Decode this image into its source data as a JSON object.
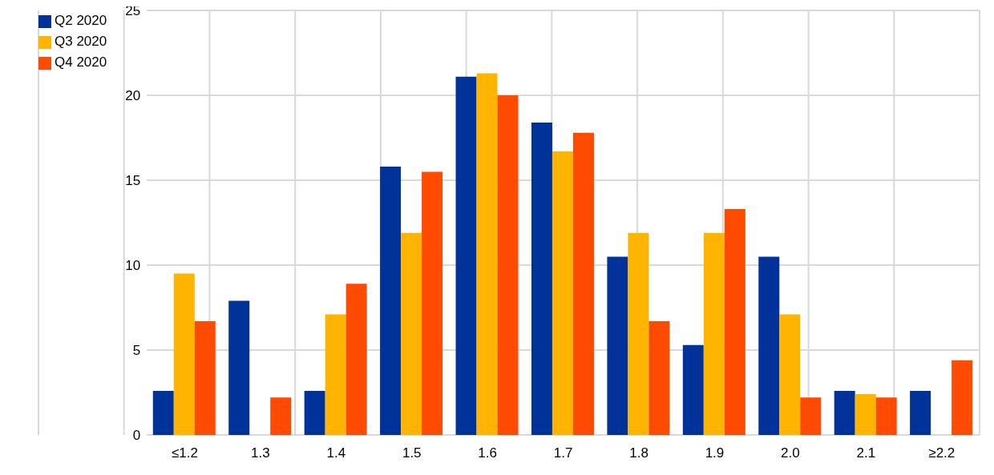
{
  "chart_data": {
    "type": "bar",
    "categories": [
      "≤1.2",
      "1.3",
      "1.4",
      "1.5",
      "1.6",
      "1.7",
      "1.8",
      "1.9",
      "2.0",
      "2.1",
      "≥2.2"
    ],
    "series": [
      {
        "name": "Q2 2020",
        "color": "#003299",
        "values": [
          2.6,
          7.9,
          2.6,
          15.8,
          21.1,
          18.4,
          10.5,
          5.3,
          10.5,
          2.6,
          2.6
        ]
      },
      {
        "name": "Q3 2020",
        "color": "#ffb400",
        "values": [
          9.5,
          0,
          7.1,
          11.9,
          21.3,
          16.7,
          11.9,
          11.9,
          7.1,
          2.4,
          0
        ]
      },
      {
        "name": "Q4 2020",
        "color": "#ff4b00",
        "values": [
          6.7,
          2.2,
          8.9,
          15.5,
          20.0,
          17.8,
          6.7,
          13.3,
          2.2,
          2.2,
          4.4
        ]
      }
    ],
    "ylim": [
      0,
      25
    ],
    "yticks": [
      0,
      5,
      10,
      15,
      20,
      25
    ],
    "grid": true,
    "legend": "top left"
  }
}
